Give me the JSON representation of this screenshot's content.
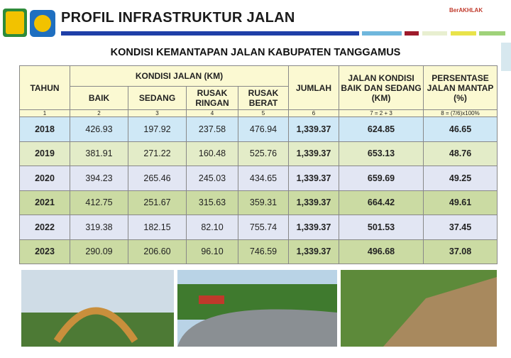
{
  "header": {
    "title": "PROFIL INFRASTRUKTUR JALAN",
    "badge": "BerAKHLAK"
  },
  "subtitle": "KONDISI KEMANTAPAN JALAN KABUPATEN TANGGAMUS",
  "table": {
    "group_headers": [
      "TAHUN",
      "KONDISI JALAN (KM)",
      "JUMLAH",
      "JALAN KONDISI BAIK DAN SEDANG (KM)",
      "PERSENTASE JALAN MANTAP (%)"
    ],
    "sub_headers": [
      "BAIK",
      "SEDANG",
      "RUSAK RINGAN",
      "RUSAK BERAT"
    ],
    "numbering": [
      "1",
      "2",
      "3",
      "4",
      "5",
      "6",
      "7 = 2 + 3",
      "8 = (7/6)x100%"
    ],
    "rows": [
      [
        "2018",
        "426.93",
        "197.92",
        "237.58",
        "476.94",
        "1,339.37",
        "624.85",
        "46.65"
      ],
      [
        "2019",
        "381.91",
        "271.22",
        "160.48",
        "525.76",
        "1,339.37",
        "653.13",
        "48.76"
      ],
      [
        "2020",
        "394.23",
        "265.46",
        "245.03",
        "434.65",
        "1,339.37",
        "659.69",
        "49.25"
      ],
      [
        "2021",
        "412.75",
        "251.67",
        "315.63",
        "359.31",
        "1,339.37",
        "664.42",
        "49.61"
      ],
      [
        "2022",
        "319.38",
        "182.15",
        "82.10",
        "755.74",
        "1,339.37",
        "501.53",
        "37.45"
      ],
      [
        "2023",
        "290.09",
        "206.60",
        "96.10",
        "746.59",
        "1,339.37",
        "496.68",
        "37.08"
      ]
    ]
  }
}
